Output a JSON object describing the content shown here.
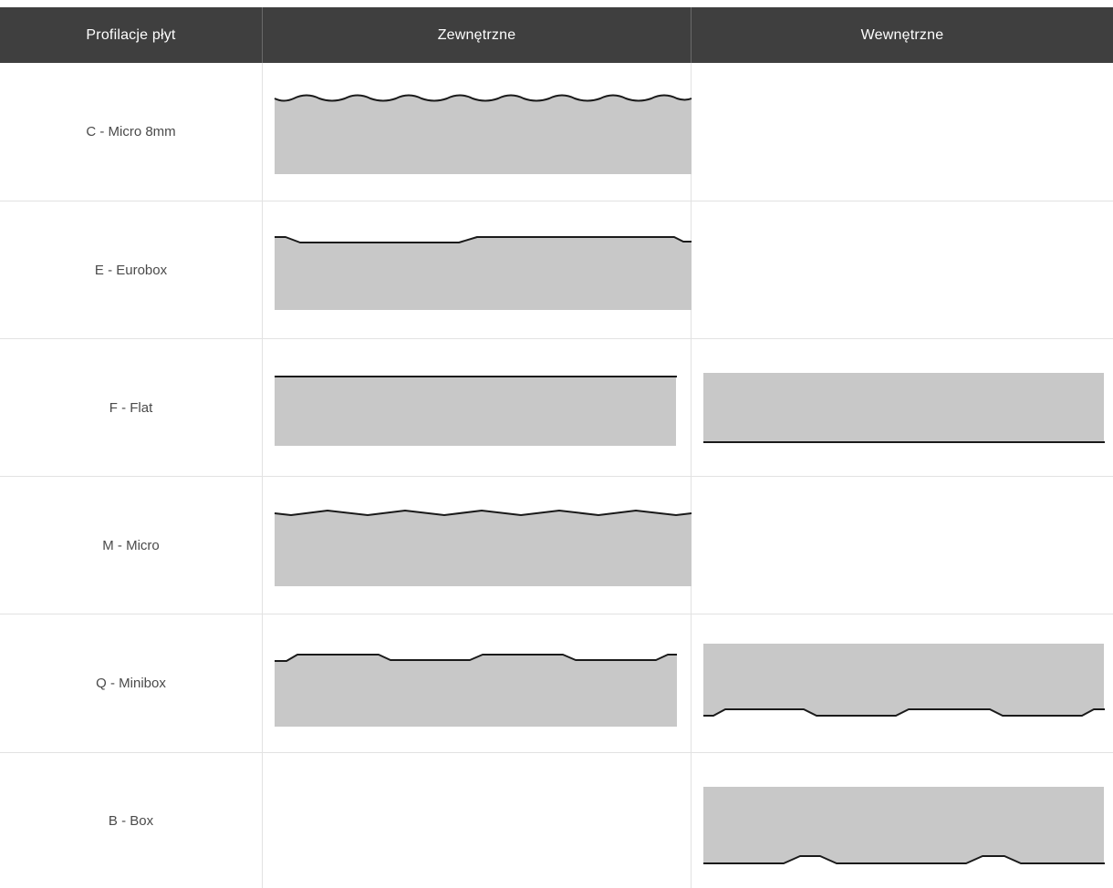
{
  "header": {
    "col1": "Profilacje płyt",
    "col2": "Zewnętrzne",
    "col3": "Wewnętrzne"
  },
  "rows": [
    {
      "label": "C - Micro 8mm",
      "outer": true,
      "inner": false
    },
    {
      "label": "E - Eurobox",
      "outer": true,
      "inner": false
    },
    {
      "label": "F - Flat",
      "outer": true,
      "inner": true
    },
    {
      "label": "M - Micro",
      "outer": true,
      "inner": false
    },
    {
      "label": "Q - Minibox",
      "outer": true,
      "inner": true
    },
    {
      "label": "B - Box",
      "outer": false,
      "inner": true
    }
  ],
  "colors": {
    "header_bg": "#3f3f3f",
    "board_fill": "#c8c8c8",
    "edge_line": "#1a1a1a",
    "grid": "#e2e2e2"
  }
}
